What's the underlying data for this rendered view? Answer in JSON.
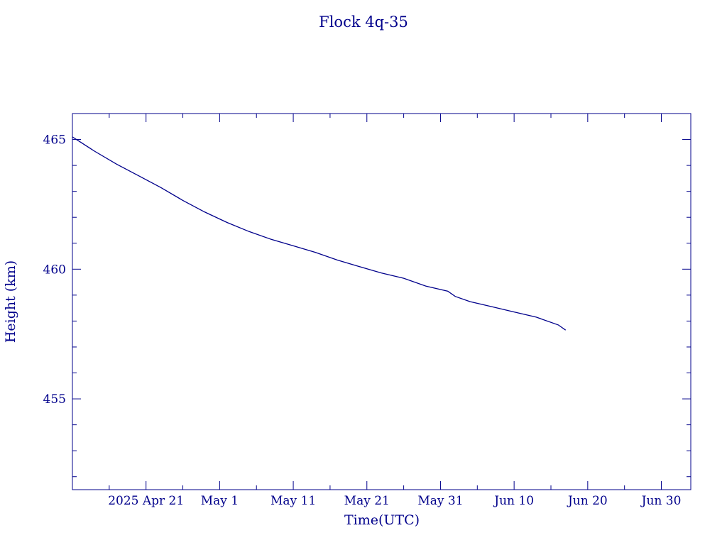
{
  "chart_data": {
    "type": "line",
    "title": "Flock 4q-35",
    "xlabel": "Time(UTC)",
    "ylabel": "Height (km)",
    "x_range": [
      "2025-04-11",
      "2025-07-04"
    ],
    "ylim": [
      451.5,
      466
    ],
    "y_ticks": [
      {
        "value": 455,
        "label": "455"
      },
      {
        "value": 460,
        "label": "460"
      },
      {
        "value": 465,
        "label": "465"
      }
    ],
    "x_ticks": [
      {
        "date": "2025-04-21",
        "label": "2025 Apr 21"
      },
      {
        "date": "2025-05-01",
        "label": "May  1"
      },
      {
        "date": "2025-05-11",
        "label": "May 11"
      },
      {
        "date": "2025-05-21",
        "label": "May 21"
      },
      {
        "date": "2025-05-31",
        "label": "May 31"
      },
      {
        "date": "2025-06-10",
        "label": "Jun 10"
      },
      {
        "date": "2025-06-20",
        "label": "Jun 20"
      },
      {
        "date": "2025-06-30",
        "label": "Jun 30"
      }
    ],
    "grid": false,
    "color": "#00008b",
    "series": [
      {
        "x": [
          "2025-04-11",
          "2025-04-14",
          "2025-04-17",
          "2025-04-20",
          "2025-04-23",
          "2025-04-26",
          "2025-04-29",
          "2025-05-02",
          "2025-05-05",
          "2025-05-08",
          "2025-05-11",
          "2025-05-14",
          "2025-05-17",
          "2025-05-20",
          "2025-05-23",
          "2025-05-26",
          "2025-05-29",
          "2025-06-01",
          "2025-06-02",
          "2025-06-04",
          "2025-06-07",
          "2025-06-10",
          "2025-06-13",
          "2025-06-16",
          "2025-06-17"
        ],
        "values": [
          465.1,
          464.55,
          464.05,
          463.6,
          463.15,
          462.65,
          462.2,
          461.8,
          461.45,
          461.15,
          460.9,
          460.65,
          460.35,
          460.1,
          459.85,
          459.65,
          459.35,
          459.15,
          458.95,
          458.75,
          458.55,
          458.35,
          458.15,
          457.85,
          457.65
        ]
      }
    ]
  }
}
